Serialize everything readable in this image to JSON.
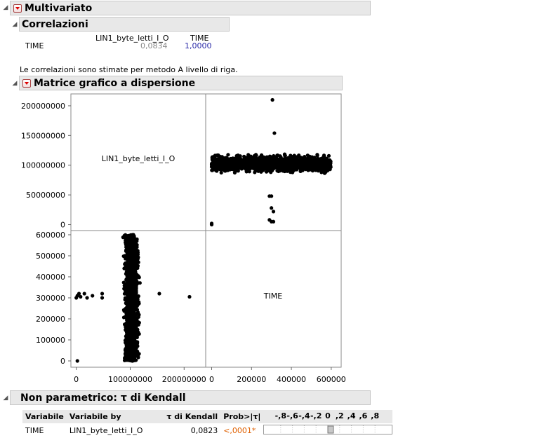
{
  "multivariato": {
    "title": "Multivariato"
  },
  "correlazioni": {
    "title": "Correlazioni",
    "col_headers": [
      "LIN1_byte_letti_I_O",
      "TIME"
    ],
    "row_label": "TIME",
    "row_values": [
      "0,0834",
      "1,0000"
    ],
    "note": "Le correlazioni sono stimate per metodo A livello di riga."
  },
  "scatter_matrix": {
    "title": "Matrice grafico a dispersione",
    "diag_labels": [
      "LIN1_byte_letti_I_O",
      "TIME"
    ],
    "y_ticks_top": [
      "200000000",
      "150000000",
      "100000000",
      "50000000",
      "0"
    ],
    "y_ticks_bottom": [
      "600000",
      "500000",
      "400000",
      "300000",
      "200000",
      "100000",
      "0"
    ],
    "x_ticks_left": [
      "0",
      "100000000",
      "200000000"
    ],
    "x_ticks_right": [
      "0",
      "200000",
      "400000",
      "600000"
    ]
  },
  "chart_data": {
    "type": "scatter",
    "variables": [
      "LIN1_byte_letti_I_O",
      "TIME"
    ],
    "top_right_panel": {
      "x_variable": "TIME",
      "y_variable": "LIN1_byte_letti_I_O",
      "xlim": [
        -30000,
        650000
      ],
      "ylim": [
        -10000000,
        220000000
      ],
      "cluster": {
        "x_range": [
          0,
          600000
        ],
        "y_range": [
          85000000,
          120000000
        ]
      },
      "outliers": [
        [
          0,
          2000000
        ],
        [
          0,
          0
        ],
        [
          305000,
          210000000
        ],
        [
          315000,
          154000000
        ],
        [
          290000,
          48000000
        ],
        [
          300000,
          48000000
        ],
        [
          310000,
          22000000
        ],
        [
          300000,
          28000000
        ],
        [
          290000,
          8000000
        ],
        [
          300000,
          5000000
        ],
        [
          310000,
          5000000
        ]
      ]
    },
    "bottom_left_panel": {
      "x_variable": "LIN1_byte_letti_I_O",
      "y_variable": "TIME",
      "xlim": [
        -10000000,
        240000000
      ],
      "ylim": [
        -30000,
        620000
      ],
      "cluster": {
        "x_range": [
          85000000,
          120000000
        ],
        "y_range": [
          0,
          600000
        ]
      },
      "outliers": [
        [
          2000000,
          0
        ],
        [
          0,
          300000
        ],
        [
          2000000,
          310000
        ],
        [
          5000000,
          320000
        ],
        [
          8000000,
          305000
        ],
        [
          15000000,
          320000
        ],
        [
          20000000,
          300000
        ],
        [
          30000000,
          310000
        ],
        [
          48000000,
          320000
        ],
        [
          48000000,
          300000
        ],
        [
          154000000,
          320000
        ],
        [
          210000000,
          305000
        ]
      ]
    }
  },
  "kendall": {
    "title": "Non parametrico: τ di Kendall",
    "headers": [
      "Variabile",
      "Variabile by",
      "τ di Kendall",
      "Prob>|τ|"
    ],
    "bar_ticks": [
      "-,8",
      "-,6",
      "-,4",
      "-,2",
      "0",
      ",2",
      ",4",
      ",6",
      ",8"
    ],
    "row": {
      "variable": "TIME",
      "by_variable": "LIN1_byte_letti_I_O",
      "tau": "0,0823",
      "prob": "<,0001*"
    },
    "tau_value": 0.0823
  }
}
